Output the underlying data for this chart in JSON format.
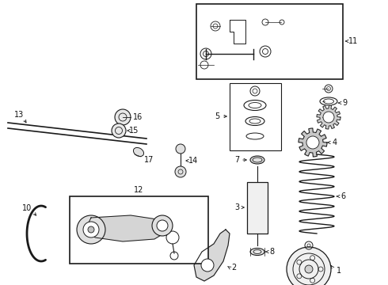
{
  "bg_color": "#ffffff",
  "fig_width": 4.9,
  "fig_height": 3.6,
  "dpi": 100,
  "line_color": "#1a1a1a",
  "label_color": "#111111",
  "font_size": 7.0
}
